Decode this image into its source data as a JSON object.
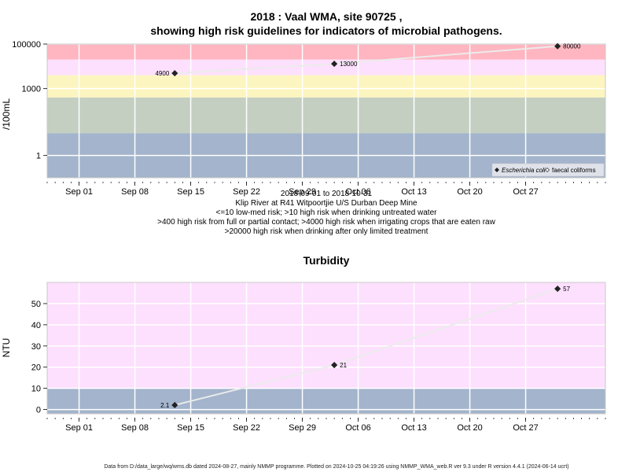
{
  "chart_data": [
    {
      "type": "scatter",
      "title_line1": "2018 : Vaal WMA, site 90725 ,",
      "title_line2": "showing high risk guidelines for indicators of microbial pathogens.",
      "ylabel": "/100mL",
      "yscale": "log",
      "ylim": [
        0.1,
        100000
      ],
      "yticks": [
        {
          "value": 1,
          "label": "1"
        },
        {
          "value": 1000,
          "label": "1000"
        },
        {
          "value": 100000,
          "label": "100000"
        }
      ],
      "x_range": [
        "2018-08-28",
        "2018-11-06"
      ],
      "xticks": [
        {
          "date": "2018-09-01",
          "label": "Sep 01"
        },
        {
          "date": "2018-09-08",
          "label": "Sep 08"
        },
        {
          "date": "2018-09-15",
          "label": "Sep 15"
        },
        {
          "date": "2018-09-22",
          "label": "Sep 22"
        },
        {
          "date": "2018-09-29",
          "label": "Sep 29"
        },
        {
          "date": "2018-10-06",
          "label": "Oct 06"
        },
        {
          "date": "2018-10-13",
          "label": "Oct 13"
        },
        {
          "date": "2018-10-20",
          "label": "Oct 20"
        },
        {
          "date": "2018-10-27",
          "label": "Oct 27"
        }
      ],
      "bands": [
        {
          "from": 20000,
          "to": 100000,
          "color": "#ffb6c1"
        },
        {
          "from": 4000,
          "to": 20000,
          "color": "#fde0fd"
        },
        {
          "from": 400,
          "to": 4000,
          "color": "#fdf5c0"
        },
        {
          "from": 10,
          "to": 400,
          "color": "#c4cfc2"
        },
        {
          "from": 0.1,
          "to": 10,
          "color": "#a3b4cc"
        }
      ],
      "series": [
        {
          "name": "Escherichia coli",
          "marker": "filled",
          "points": [
            {
              "date": "2018-09-13",
              "value": 4900,
              "label": "4900"
            },
            {
              "date": "2018-10-03",
              "value": 13000,
              "label": "13000"
            },
            {
              "date": "2018-10-31",
              "value": 80000,
              "label": "80000"
            }
          ]
        },
        {
          "name": "faecal coliforms",
          "marker": "open",
          "points": []
        }
      ],
      "legend_position": "bottom-right",
      "subtitle_lines": [
        "2018-09-01 to 2018-10-31",
        "Klip River at R41 Witpoortjie U/S Durban Deep Mine",
        "<=10 low-med risk; >10 high risk when drinking untreated water",
        ">400 high risk from full or partial contact; >4000 high risk when irrigating crops that are eaten raw",
        ">20000 high risk when drinking after only limited treatment"
      ]
    },
    {
      "type": "scatter",
      "title": "Turbidity",
      "ylabel": "NTU",
      "yscale": "linear",
      "ylim": [
        -2,
        60
      ],
      "yticks": [
        {
          "value": 0,
          "label": "0"
        },
        {
          "value": 10,
          "label": "10"
        },
        {
          "value": 20,
          "label": "20"
        },
        {
          "value": 30,
          "label": "30"
        },
        {
          "value": 40,
          "label": "40"
        },
        {
          "value": 50,
          "label": "50"
        }
      ],
      "x_range": [
        "2018-08-28",
        "2018-11-06"
      ],
      "xticks": [
        {
          "date": "2018-09-01",
          "label": "Sep 01"
        },
        {
          "date": "2018-09-08",
          "label": "Sep 08"
        },
        {
          "date": "2018-09-15",
          "label": "Sep 15"
        },
        {
          "date": "2018-09-22",
          "label": "Sep 22"
        },
        {
          "date": "2018-09-29",
          "label": "Sep 29"
        },
        {
          "date": "2018-10-06",
          "label": "Oct 06"
        },
        {
          "date": "2018-10-13",
          "label": "Oct 13"
        },
        {
          "date": "2018-10-20",
          "label": "Oct 20"
        },
        {
          "date": "2018-10-27",
          "label": "Oct 27"
        }
      ],
      "bands": [
        {
          "from": 10,
          "to": 60,
          "color": "#fde0fd"
        },
        {
          "from": -2,
          "to": 10,
          "color": "#a3b4cc"
        }
      ],
      "series": [
        {
          "name": "",
          "marker": "filled",
          "points": [
            {
              "date": "2018-09-13",
              "value": 2.1,
              "label": "2.1"
            },
            {
              "date": "2018-10-03",
              "value": 21,
              "label": "21"
            },
            {
              "date": "2018-10-31",
              "value": 57,
              "label": "57"
            }
          ]
        }
      ]
    }
  ],
  "footer": "Data from D:/data_large/wq/wms.db dated 2024-08-27, mainly NMMP programme. Plotted on 2024-10-25 04:19:26 using NMMP_WMA_web.R ver 9.3 under R version 4.4.1 (2024-06-14 ucrt)"
}
